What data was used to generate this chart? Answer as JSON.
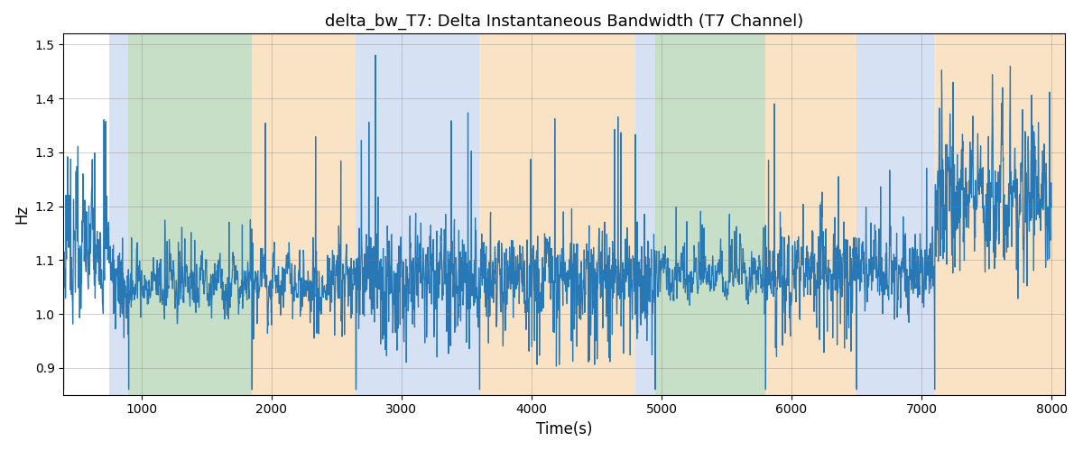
{
  "title": "delta_bw_T7: Delta Instantaneous Bandwidth (T7 Channel)",
  "xlabel": "Time(s)",
  "ylabel": "Hz",
  "xlim": [
    400,
    8100
  ],
  "ylim": [
    0.85,
    1.52
  ],
  "yticks": [
    0.9,
    1.0,
    1.1,
    1.2,
    1.3,
    1.4,
    1.5
  ],
  "xticks": [
    1000,
    2000,
    3000,
    4000,
    5000,
    6000,
    7000,
    8000
  ],
  "line_color": "#2878b5",
  "line_width": 0.9,
  "bg_regions": [
    {
      "xmin": 750,
      "xmax": 900,
      "color": "#aec6e8",
      "alpha": 0.5
    },
    {
      "xmin": 900,
      "xmax": 1850,
      "color": "#90c090",
      "alpha": 0.5
    },
    {
      "xmin": 1850,
      "xmax": 2650,
      "color": "#f5c98a",
      "alpha": 0.5
    },
    {
      "xmin": 2650,
      "xmax": 3600,
      "color": "#aec6e8",
      "alpha": 0.5
    },
    {
      "xmin": 3600,
      "xmax": 4800,
      "color": "#f5c98a",
      "alpha": 0.5
    },
    {
      "xmin": 4800,
      "xmax": 4950,
      "color": "#aec6e8",
      "alpha": 0.5
    },
    {
      "xmin": 4950,
      "xmax": 5800,
      "color": "#90c090",
      "alpha": 0.5
    },
    {
      "xmin": 5800,
      "xmax": 6500,
      "color": "#f5c98a",
      "alpha": 0.5
    },
    {
      "xmin": 6500,
      "xmax": 7100,
      "color": "#aec6e8",
      "alpha": 0.5
    },
    {
      "xmin": 7100,
      "xmax": 8200,
      "color": "#f5c98a",
      "alpha": 0.5
    }
  ],
  "figsize": [
    12.0,
    5.0
  ],
  "dpi": 100
}
